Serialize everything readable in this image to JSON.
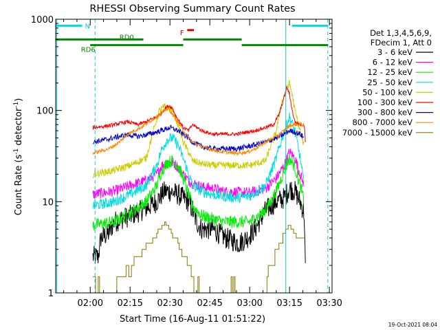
{
  "chart_data": {
    "type": "line",
    "title": "RHESSI Observing Summary Count Rates",
    "xlabel": "Start Time (16-Aug-11 01:51:22)",
    "ylabel": "Count Rate (s",
    "ylabel_sup1": "-1",
    "ylabel_mid": " detector",
    "ylabel_sup2": "-1",
    "ylabel_end": ")",
    "x_unit": "minutes",
    "xlim": [
      107,
      211
    ],
    "ylim": [
      1,
      1000
    ],
    "yscale": "log",
    "xticks": [
      {
        "t": 120,
        "label": "02:00"
      },
      {
        "t": 135,
        "label": "02:15"
      },
      {
        "t": 150,
        "label": "02:30"
      },
      {
        "t": 165,
        "label": "02:45"
      },
      {
        "t": 180,
        "label": "03:00"
      },
      {
        "t": 195,
        "label": "03:15"
      },
      {
        "t": 210,
        "label": "03:30"
      }
    ],
    "yticks": [
      {
        "v": 1,
        "label": "1"
      },
      {
        "v": 10,
        "label": "10"
      },
      {
        "v": 100,
        "label": "100"
      },
      {
        "v": 1000,
        "label": "1000"
      }
    ],
    "legend_header": [
      "Det 1,3,4,5,6,9,",
      "FDecim 1, Att 0"
    ],
    "legend_position": "right",
    "series": [
      {
        "name": "3 - 6 keV",
        "color": "#000000",
        "noise": 0.12,
        "x": [
          121.0,
          123.0,
          124.0,
          127.0,
          129.0,
          135.0,
          141.0,
          145.0,
          147.0,
          148.0,
          150.0,
          153.0,
          157.0,
          158.5,
          160.0,
          162.0,
          166.0,
          171.0,
          176.0,
          179.0,
          182.0,
          186.0,
          190.0,
          193.0,
          195.0,
          197.0,
          199.0,
          200.5,
          201.0
        ],
        "y": [
          2.5,
          2.5,
          4.0,
          4.5,
          6.0,
          7.0,
          8.5,
          10.0,
          12.0,
          13.0,
          13.0,
          12.0,
          10.0,
          8.0,
          6.0,
          5.0,
          5.0,
          4.0,
          3.5,
          4.0,
          5.0,
          8.0,
          10.0,
          11.0,
          14.0,
          13.0,
          10.0,
          7.5,
          1.5
        ]
      },
      {
        "name": "6 - 12 keV",
        "color": "#ff00ff",
        "noise": 0.06,
        "x": [
          121.0,
          129.0,
          135.0,
          141.0,
          145.0,
          147.0,
          149.0,
          151.0,
          153.0,
          155.0,
          157.0,
          158.5,
          162.0,
          166.0,
          170.0,
          180.0,
          186.0,
          190.0,
          193.0,
          195.0,
          197.0,
          199.0,
          200.5
        ],
        "y": [
          12.0,
          13.0,
          15.0,
          17.0,
          20.0,
          25.0,
          27.0,
          27.0,
          24.0,
          20.0,
          17.0,
          16.0,
          14.5,
          14.0,
          13.0,
          12.5,
          14.0,
          18.0,
          25.0,
          35.0,
          30.0,
          20.0,
          15.0
        ]
      },
      {
        "name": "12 - 25 keV",
        "color": "#00ee00",
        "noise": 0.07,
        "x": [
          121.0,
          129.0,
          135.0,
          141.0,
          145.0,
          147.0,
          149.0,
          151.0,
          153.0,
          155.0,
          157.0,
          158.5,
          162.0,
          166.0,
          170.0,
          180.0,
          186.0,
          190.0,
          193.0,
          195.0,
          197.0,
          199.0,
          200.5
        ],
        "y": [
          5.5,
          6.0,
          7.5,
          10.0,
          15.0,
          22.0,
          27.0,
          28.0,
          25.0,
          18.0,
          12.0,
          9.0,
          7.0,
          6.5,
          6.0,
          6.0,
          8.0,
          13.0,
          22.0,
          30.0,
          24.0,
          15.0,
          10.0
        ]
      },
      {
        "name": "25 - 50 keV",
        "color": "#00dddd",
        "noise": 0.06,
        "x": [
          121.0,
          129.0,
          135.0,
          141.0,
          145.0,
          147.0,
          149.0,
          151.0,
          153.0,
          155.0,
          157.0,
          158.5,
          162.0,
          166.0,
          170.0,
          175.0,
          180.0,
          186.0,
          190.0,
          193.0,
          195.0,
          197.0,
          199.0,
          200.5
        ],
        "y": [
          9.0,
          10.0,
          12.0,
          15.0,
          25.0,
          38.0,
          48.0,
          50.0,
          42.0,
          30.0,
          20.0,
          15.0,
          13.0,
          12.0,
          11.5,
          11.0,
          11.5,
          15.0,
          30.0,
          60.0,
          85.0,
          60.0,
          30.0,
          15.0
        ]
      },
      {
        "name": "50 - 100 keV",
        "color": "#cccc00",
        "noise": 0.04,
        "x": [
          121.0,
          129.0,
          135.0,
          141.0,
          145.0,
          146.0,
          148.0,
          151.0,
          153.0,
          155.0,
          157.0,
          158.5,
          162.0,
          166.0,
          170.0,
          175.0,
          180.0,
          186.0,
          190.0,
          192.0,
          194.0,
          195.0,
          196.0,
          197.0,
          199.0,
          200.5
        ],
        "y": [
          20.0,
          22.0,
          25.0,
          30.0,
          80.0,
          100.0,
          110.0,
          100.0,
          70.0,
          45.0,
          35.0,
          28.0,
          26.0,
          25.0,
          25.0,
          25.0,
          25.0,
          28.0,
          60.0,
          120.0,
          180.0,
          200.0,
          150.0,
          100.0,
          60.0,
          40.0
        ]
      },
      {
        "name": "100 - 300 keV",
        "color": "#ff0000",
        "noise": 0.02,
        "x": [
          121.0,
          127.0,
          131.0,
          134.0,
          138.0,
          141.0,
          145.0,
          147.0,
          148.0,
          149.0,
          150.0,
          151.0,
          152.0,
          153.0,
          154.0,
          155.0,
          157.0,
          158.5,
          162.0,
          166.0,
          170.0,
          175.0,
          179.0,
          182.0,
          186.0,
          189.0,
          191.0,
          193.0,
          194.0,
          195.0,
          196.0,
          197.0,
          199.0,
          200.5,
          201.0
        ],
        "y": [
          65.0,
          68.0,
          72.0,
          75.0,
          70.0,
          75.0,
          85.0,
          95.0,
          105.0,
          110.0,
          112.0,
          105.0,
          90.0,
          80.0,
          72.0,
          65.0,
          60.0,
          70.0,
          60.0,
          55.0,
          55.0,
          55.0,
          58.0,
          60.0,
          65.0,
          70.0,
          90.0,
          140.0,
          180.0,
          150.0,
          100.0,
          75.0,
          70.0,
          70.0,
          45.0
        ]
      },
      {
        "name": "300 - 800 keV",
        "color": "#0000cc",
        "noise": 0.03,
        "x": [
          121.0,
          126.0,
          131.0,
          134.0,
          138.0,
          141.0,
          145.0,
          148.0,
          150.0,
          153.0,
          155.0,
          157.0,
          158.5,
          162.0,
          166.0,
          170.0,
          175.0,
          179.0,
          182.0,
          186.0,
          190.0,
          193.0,
          195.0,
          197.0,
          199.0,
          200.5
        ],
        "y": [
          45.0,
          48.0,
          52.0,
          54.0,
          52.0,
          54.0,
          58.0,
          62.0,
          65.0,
          60.0,
          55.0,
          50.0,
          45.0,
          40.0,
          38.0,
          38.0,
          38.0,
          40.0,
          42.0,
          45.0,
          50.0,
          55.0,
          60.0,
          58.0,
          55.0,
          50.0
        ]
      },
      {
        "name": "800 - 7000 keV",
        "color": "#ff8800",
        "noise": 0.02,
        "x": [
          121.0,
          127.0,
          131.0,
          134.0,
          139.0,
          143.0,
          146.0,
          148.0,
          149.0,
          150.0,
          151.0,
          153.0,
          155.0,
          157.0,
          158.5,
          162.0,
          166.0,
          170.0,
          175.0,
          179.0,
          182.0,
          186.0,
          190.0,
          193.0,
          195.0,
          197.0,
          199.0,
          200.5
        ],
        "y": [
          34.0,
          38.0,
          45.0,
          55.0,
          65.0,
          78.0,
          90.0,
          100.0,
          105.0,
          100.0,
          90.0,
          75.0,
          60.0,
          50.0,
          45.0,
          40.0,
          37.0,
          35.0,
          34.0,
          35.0,
          38.0,
          45.0,
          52.0,
          60.0,
          68.0,
          70.0,
          70.0,
          70.0
        ]
      },
      {
        "name": "7000 - 15000 keV",
        "color": "#887700",
        "step": true,
        "x": [
          121.0,
          129.0,
          132.0,
          135.0,
          138.0,
          140.0,
          142.0,
          144.0,
          146.0,
          148.0,
          150.0,
          152.0,
          154.0,
          156.0,
          157.0,
          158.5,
          159.5,
          160.5,
          161.0,
          186.0,
          187.0,
          188.0,
          189.0,
          190.0,
          191.0,
          192.0,
          193.0,
          194.0,
          195.0,
          196.0,
          197.0,
          198.0,
          199.0,
          200.5
        ],
        "y": [
          1.0,
          1.0,
          1.5,
          2.0,
          2.5,
          3.0,
          3.5,
          4.0,
          5.0,
          6.0,
          5.0,
          4.0,
          3.0,
          2.5,
          2.0,
          1.5,
          1.2,
          1.0,
          1.0,
          1.0,
          1.5,
          2.0,
          2.5,
          3.0,
          3.5,
          4.0,
          4.5,
          5.0,
          5.5,
          5.0,
          4.5,
          4.0,
          4.0,
          4.0
        ]
      }
    ],
    "annotations": {
      "segments": [
        {
          "color": "#00dddd",
          "v": 850,
          "x1": 107,
          "x2": 117
        },
        {
          "color": "#00dddd",
          "v": 850,
          "x1": 196,
          "x2": 209.5
        },
        {
          "color": "#008800",
          "v": 600,
          "x1": 107,
          "x2": 140
        },
        {
          "color": "#008800",
          "v": 520,
          "x1": 120,
          "x2": 155
        },
        {
          "color": "#008800",
          "v": 600,
          "x1": 155,
          "x2": 177
        },
        {
          "color": "#008800",
          "v": 520,
          "x1": 177,
          "x2": 209.5
        },
        {
          "color": "#dd0000",
          "v": 760,
          "x1": 156.5,
          "x2": 159
        }
      ],
      "vlines": [
        {
          "t": 107.4,
          "color": "#00cccc",
          "dash": false
        },
        {
          "t": 121.8,
          "color": "#00cccc",
          "dash": true
        },
        {
          "t": 193.6,
          "color": "#00cccc",
          "dash": false
        },
        {
          "t": 209.4,
          "color": "#00cccc",
          "dash": true
        }
      ],
      "labels": [
        {
          "text": "N",
          "t": 118.0,
          "v": 850,
          "color": "#00cccc"
        },
        {
          "text": "RD0",
          "t": 131.0,
          "v": 640,
          "color": "#008800"
        },
        {
          "text": "RD6",
          "t": 116.5,
          "v": 470,
          "color": "#008800"
        },
        {
          "text": "F",
          "t": 153.8,
          "v": 720,
          "color": "#dd0000"
        }
      ]
    }
  },
  "timestamp": "19-Oct-2021 08:04"
}
